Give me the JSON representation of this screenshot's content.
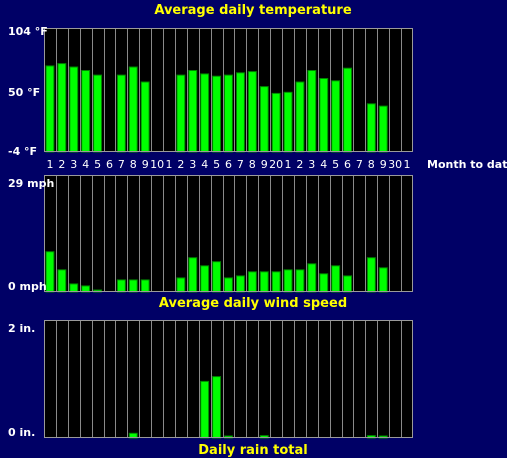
{
  "colors": {
    "background": "#000066",
    "bar": "#00ff00",
    "title": "#ffff00",
    "text": "#ffffff"
  },
  "xaxis": {
    "label": "Month to date",
    "ticks": [
      "1",
      "2",
      "3",
      "4",
      "5",
      "6",
      "7",
      "8",
      "9",
      "10",
      "1",
      "2",
      "3",
      "4",
      "5",
      "6",
      "7",
      "8",
      "9",
      "20",
      "1",
      "2",
      "3",
      "4",
      "5",
      "6",
      "7",
      "8",
      "9",
      "30",
      "1"
    ]
  },
  "chart_data": [
    {
      "type": "bar",
      "title": "Average daily temperature",
      "unit": "°F",
      "ylim": [
        -4,
        104
      ],
      "y_tick_labels": [
        "104 °F",
        "50 °F",
        "-4 °F"
      ],
      "days": [
        1,
        2,
        3,
        4,
        5,
        6,
        7,
        8,
        9,
        10,
        11,
        12,
        13,
        14,
        15,
        16,
        17,
        18,
        19,
        20,
        21,
        22,
        23,
        24,
        25,
        26,
        27,
        28,
        29,
        30,
        31
      ],
      "values": [
        71,
        73,
        70,
        67,
        63,
        null,
        63,
        70,
        57,
        null,
        null,
        63,
        67,
        64,
        62,
        63,
        65,
        66,
        53,
        47,
        48,
        57,
        67,
        60,
        58,
        69,
        null,
        38,
        36,
        null,
        null
      ]
    },
    {
      "type": "bar",
      "title": "Average daily wind speed",
      "unit": "mph",
      "ylim": [
        0,
        29
      ],
      "y_tick_labels": [
        "29 mph",
        "0 mph"
      ],
      "days": [
        1,
        2,
        3,
        4,
        5,
        6,
        7,
        8,
        9,
        10,
        11,
        12,
        13,
        14,
        15,
        16,
        17,
        18,
        19,
        20,
        21,
        22,
        23,
        24,
        25,
        26,
        27,
        28,
        29,
        30,
        31
      ],
      "values": [
        10,
        5.5,
        2,
        1.5,
        0.5,
        null,
        3,
        3,
        3,
        null,
        null,
        3.5,
        8.5,
        6.5,
        7.5,
        3.5,
        4,
        5,
        5,
        5,
        5.5,
        5.5,
        7,
        4.5,
        6.5,
        4,
        null,
        8.5,
        6,
        null,
        null
      ]
    },
    {
      "type": "bar",
      "title": "Daily rain total",
      "unit": "in.",
      "ylim": [
        0,
        2
      ],
      "y_tick_labels": [
        "2 in.",
        "0 in."
      ],
      "days": [
        1,
        2,
        3,
        4,
        5,
        6,
        7,
        8,
        9,
        10,
        11,
        12,
        13,
        14,
        15,
        16,
        17,
        18,
        19,
        20,
        21,
        22,
        23,
        24,
        25,
        26,
        27,
        28,
        29,
        30,
        31
      ],
      "values": [
        null,
        null,
        null,
        null,
        null,
        null,
        null,
        0.08,
        null,
        null,
        null,
        null,
        null,
        0.96,
        1.04,
        0.02,
        null,
        null,
        0.04,
        null,
        null,
        null,
        null,
        null,
        null,
        null,
        null,
        0.04,
        0.02,
        null,
        null
      ]
    }
  ]
}
